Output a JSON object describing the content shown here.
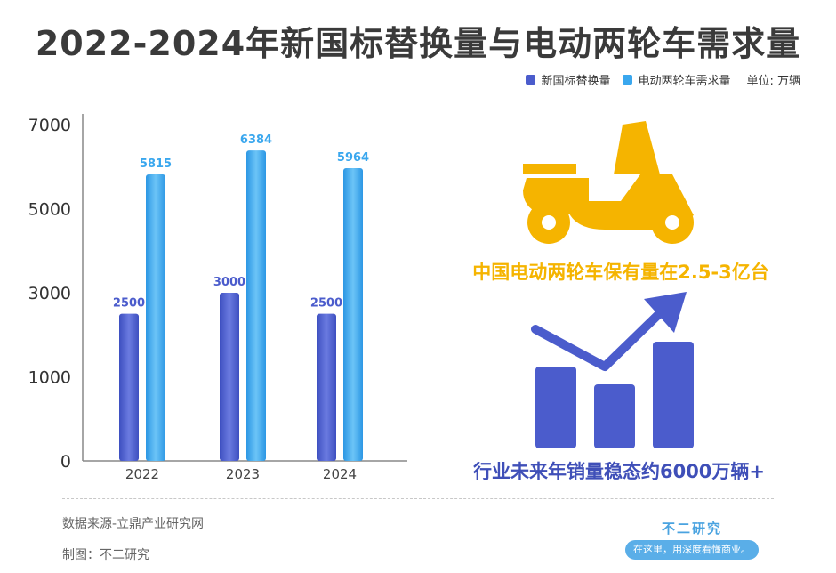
{
  "title": "2022-2024年新国标替换量与电动两轮车需求量",
  "legend": {
    "series1": "新国标替换量",
    "series2": "电动两轮车需求量",
    "unit": "单位: 万辆"
  },
  "colors": {
    "series1": "#4b5ccc",
    "series2": "#3aa7ee",
    "accent_yellow": "#f5b400",
    "accent_blue": "#3f4fb8"
  },
  "chart_data": {
    "type": "bar",
    "categories": [
      "2022",
      "2023",
      "2024"
    ],
    "series": [
      {
        "name": "新国标替换量",
        "values": [
          2500,
          3000,
          2500
        ]
      },
      {
        "name": "电动两轮车需求量",
        "values": [
          5815,
          6384,
          5964
        ]
      }
    ],
    "yticks": [
      0,
      1000,
      3000,
      5000,
      7000
    ],
    "ylim": [
      0,
      7000
    ],
    "legend_position": "top-right",
    "grid": false
  },
  "icons": {
    "scooter": "scooter-icon",
    "trend": "trend-up-bars-icon"
  },
  "banner1": "中国电动两轮车保有量在2.5-3亿台",
  "banner2": "行业未来年销量稳态约6000万辆+",
  "footer": {
    "source": "数据来源-立鼎产业研究网",
    "credit": "制图：不二研究",
    "brand": "不二研究",
    "slogan": "在这里，用深度看懂商业。"
  }
}
